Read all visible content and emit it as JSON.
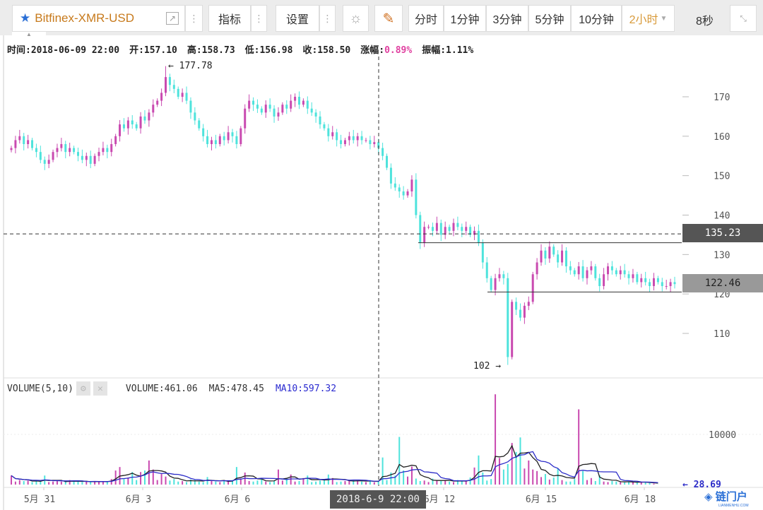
{
  "toolbar": {
    "symbol": "Bitfinex-XMR-USD",
    "indicator": "指标",
    "settings": "设置",
    "periods": [
      "分时",
      "1分钟",
      "3分钟",
      "5分钟",
      "10分钟"
    ],
    "active_period": "2小时",
    "refresh": "8秒",
    "dots": "⋮"
  },
  "info": {
    "time": "时间:2018-06-09 22:00",
    "open": "开:157.10",
    "high": "高:158.73",
    "low": "低:156.98",
    "close": "收:158.50",
    "change_label": "涨幅:",
    "change": "0.89%",
    "amp": "振幅:1.11%"
  },
  "volume_panel": {
    "title": "VOLUME(5,10)",
    "volume": "VOLUME:461.06",
    "ma5": "MA5:478.45",
    "ma10": "MA10:597.32"
  },
  "crosshair": {
    "time": "2018-6-9 22:00",
    "price": "135.23"
  },
  "last_price": "122.46",
  "last_volume": "← 28.69",
  "max_label": "← 177.78",
  "min_label": "102 →",
  "logo": {
    "text": "链门户",
    "sub": "LIANMENHU.COM"
  },
  "colors": {
    "up": "#c94ab0",
    "down": "#4ee3dc",
    "ma5": "#222222",
    "ma10": "#2c2cc8"
  },
  "chart_data": {
    "type": "candlestick",
    "price_axis": {
      "ticks": [
        110,
        120,
        130,
        140,
        150,
        160,
        170
      ]
    },
    "volume_axis": {
      "ticks": [
        10000
      ]
    },
    "x_ticks": [
      "5月 31",
      "6月 3",
      "6月 6",
      "6月 12",
      "6月 15",
      "6月 18"
    ],
    "closes": [
      157,
      159,
      160,
      158,
      159,
      157,
      156,
      154,
      153,
      154,
      156,
      157,
      158,
      156,
      157,
      156,
      155,
      154,
      155,
      153,
      155,
      156,
      157,
      156,
      158,
      160,
      163,
      162,
      164,
      163,
      162,
      165,
      164,
      166,
      168,
      169,
      171,
      175,
      173,
      172,
      170,
      171,
      169,
      166,
      164,
      162,
      160,
      158,
      159,
      158,
      160,
      159,
      161,
      160,
      158,
      162,
      167,
      169,
      168,
      167,
      166,
      168,
      167,
      165,
      166,
      168,
      167,
      169,
      170,
      168,
      169,
      167,
      166,
      165,
      163,
      162,
      160,
      161,
      159,
      158,
      159,
      160,
      159,
      160,
      159,
      159,
      158,
      158.5,
      157,
      155,
      152,
      148,
      147,
      146,
      145,
      146,
      149,
      140,
      133,
      137,
      137,
      136,
      138,
      135,
      137,
      136,
      138,
      137,
      136,
      137,
      135,
      136,
      133,
      128,
      124,
      121,
      124,
      125,
      124,
      104,
      118,
      116,
      114,
      117,
      118,
      125,
      128,
      131,
      129,
      132,
      130,
      128,
      131,
      127,
      126,
      125,
      127,
      124,
      126,
      127,
      124,
      122,
      125,
      127,
      126,
      125,
      126,
      125,
      124,
      125,
      123,
      124,
      123,
      122,
      124,
      123,
      122,
      122,
      123,
      122.5
    ],
    "volumes": [
      1800,
      600,
      900,
      700,
      800,
      500,
      700,
      600,
      1800,
      500,
      600,
      700,
      600,
      500,
      900,
      600,
      700,
      500,
      600,
      500,
      700,
      600,
      500,
      600,
      1100,
      2800,
      3500,
      1100,
      1400,
      2500,
      900,
      2500,
      2800,
      4800,
      3000,
      900,
      2100,
      1600,
      800,
      1100,
      600,
      700,
      500,
      1000,
      900,
      600,
      500,
      1500,
      700,
      600,
      500,
      800,
      600,
      900,
      3500,
      1200,
      2400,
      700,
      600,
      800,
      1100,
      600,
      500,
      700,
      3000,
      800,
      1200,
      2000,
      600,
      700,
      1300,
      1800,
      500,
      600,
      800,
      900,
      2000,
      1300,
      500,
      600,
      700,
      800,
      900,
      700,
      600,
      500,
      900,
      461,
      700,
      5400,
      900,
      2400,
      1800,
      9500,
      2800,
      1600,
      3600,
      1200,
      700,
      800,
      500,
      1200,
      900,
      700,
      800,
      600,
      500,
      900,
      700,
      800,
      1400,
      3400,
      5800,
      2400,
      800,
      1100,
      18000,
      5300,
      3000,
      4100,
      8300,
      6500,
      9400,
      3200,
      4800,
      3000,
      2700,
      1500,
      2100,
      1000,
      1400,
      3200,
      900,
      600,
      600,
      1100,
      15000,
      2700,
      900,
      1300,
      700,
      1900,
      600,
      500,
      700,
      600,
      500,
      400,
      600,
      500,
      400,
      500,
      400,
      300,
      200,
      29
    ]
  }
}
